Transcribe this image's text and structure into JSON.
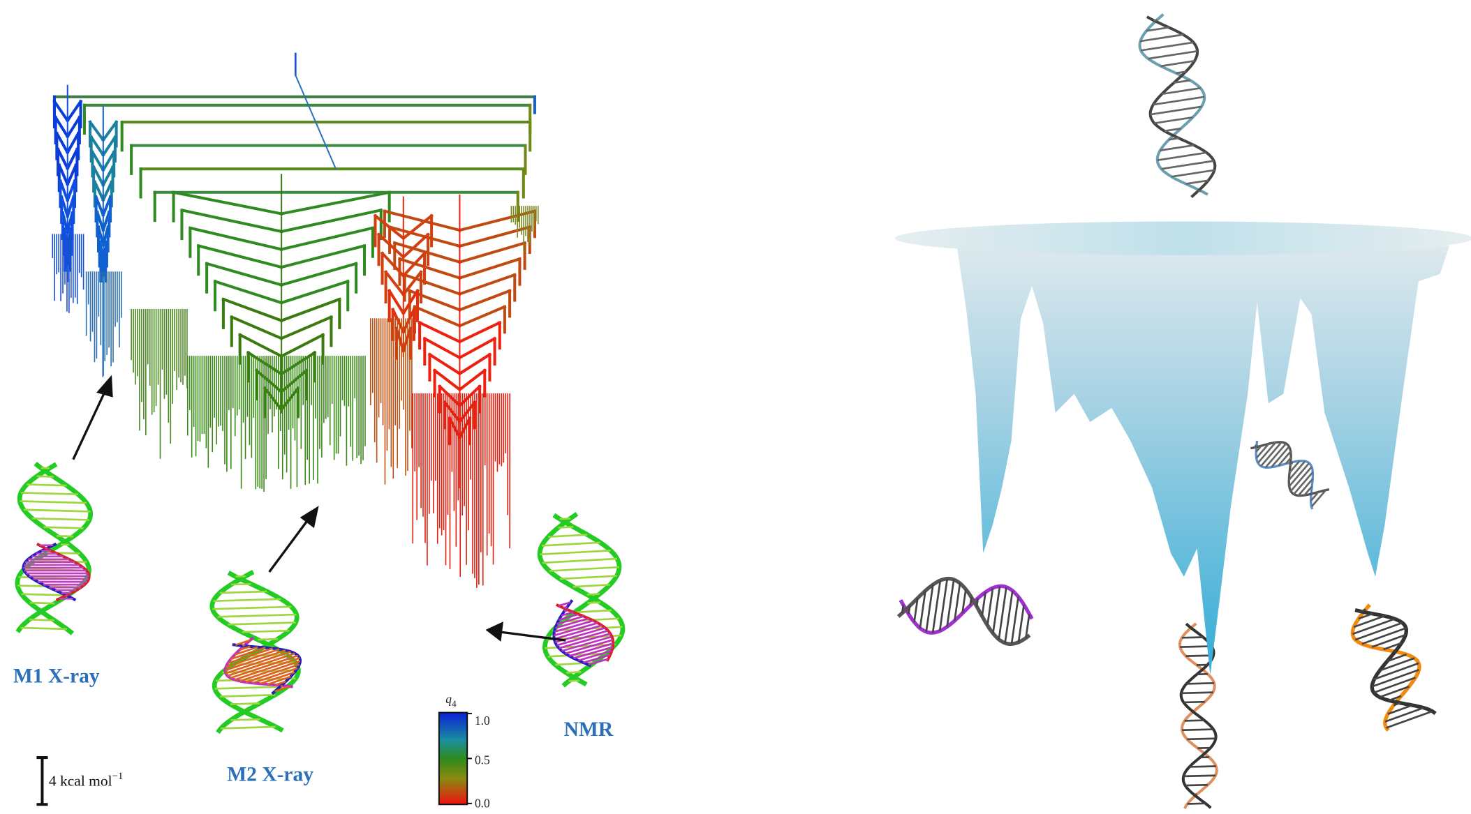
{
  "labels": {
    "m1": "M1 X-ray",
    "m2": "M2 X-ray",
    "nmr": "NMR"
  },
  "colorbar": {
    "label": "q",
    "label_sub": "4",
    "ticks": [
      "1.0",
      "0.5",
      "0.0"
    ]
  },
  "scale_bar": {
    "text": "4 kcal mol",
    "sup": "−1"
  }
}
